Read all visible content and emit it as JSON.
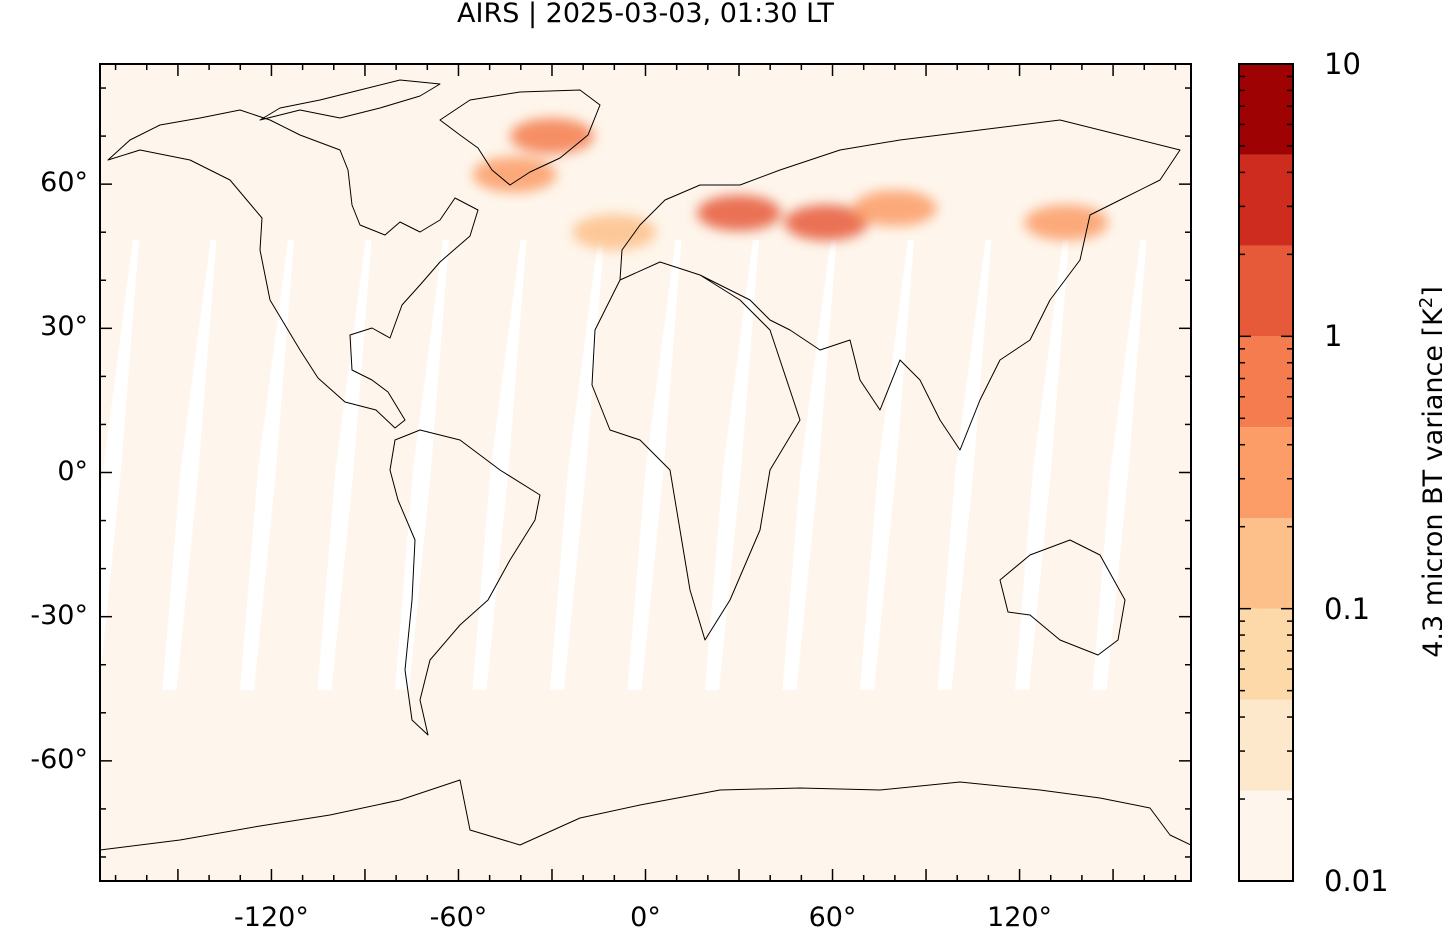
{
  "title": "AIRS | 2025-03-03, 01:30 LT",
  "axes": {
    "x_ticks": [
      "-120°",
      "-60°",
      "0°",
      "60°",
      "120°"
    ],
    "y_ticks": [
      "60°",
      "30°",
      "0°",
      "-30°",
      "-60°"
    ]
  },
  "colorbar": {
    "label_main": "4.3 micron BT variance [K",
    "label_sup": "2",
    "label_end": "]",
    "tick_labels": [
      "10",
      "1",
      "0.1",
      "0.01"
    ],
    "colors": [
      "#fef6ec",
      "#fde8cc",
      "#fdd8a8",
      "#fdc08a",
      "#fc9c66",
      "#f57c4e",
      "#e65a3a",
      "#cd2c1e",
      "#9e0202"
    ],
    "scale": "log"
  },
  "chart_data": {
    "type": "heatmap",
    "projection": "equirectangular",
    "xlim": [
      -175,
      175
    ],
    "ylim": [
      -85,
      85
    ],
    "x_ticks": [
      -120,
      -60,
      0,
      60,
      120
    ],
    "y_ticks": [
      60,
      30,
      0,
      -30,
      -60
    ],
    "color_levels": [
      0.01,
      0.0215,
      0.0464,
      0.1,
      0.215,
      0.464,
      1,
      2.15,
      4.64,
      10
    ],
    "background_value": 0.015,
    "hotspots": [
      {
        "region": "Greenland / North Atlantic",
        "lon": -30,
        "lat": 70,
        "value": 0.8
      },
      {
        "region": "Eastern Europe",
        "lon": 30,
        "lat": 54,
        "value": 1.2
      },
      {
        "region": "Western Siberia",
        "lon": 58,
        "lat": 52,
        "value": 1.0
      },
      {
        "region": "Central Siberia",
        "lon": 80,
        "lat": 55,
        "value": 0.3
      },
      {
        "region": "Northeast Asia",
        "lon": 135,
        "lat": 52,
        "value": 0.4
      },
      {
        "region": "Western Europe",
        "lon": -10,
        "lat": 50,
        "value": 0.2
      },
      {
        "region": "North Atlantic east",
        "lon": -42,
        "lat": 62,
        "value": 0.25
      }
    ]
  }
}
